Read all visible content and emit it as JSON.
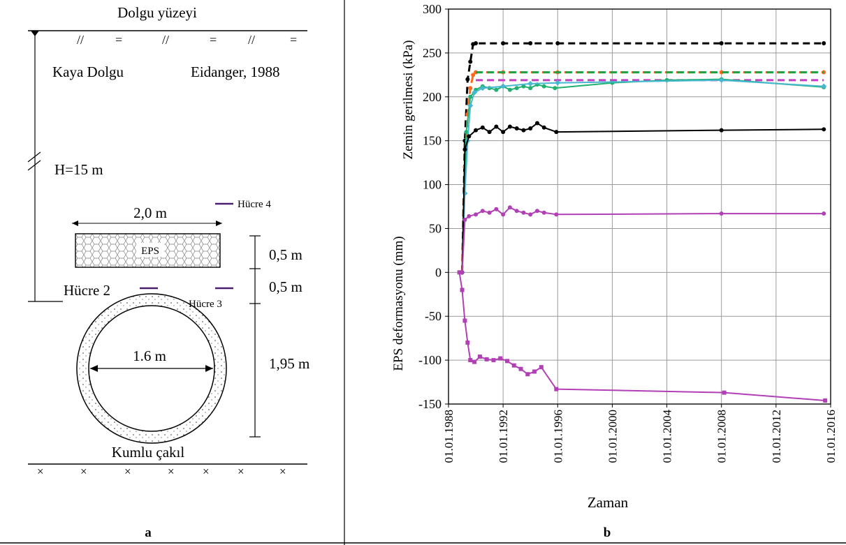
{
  "panel_a": {
    "surface_label": "Dolgu yüzeyi",
    "fill_label": "Kaya Dolgu",
    "reference": "Eidanger, 1988",
    "height_label": "H=15 m",
    "eps_width_label": "2,0 m",
    "eps_label": "EPS",
    "dim_top": "0,5 m",
    "dim_mid": "0,5 m",
    "dim_pipe": "1,95 m",
    "pipe_diameter_label": "1.6 m",
    "cell2": "Hücre 2",
    "cell3": "Hücre 3",
    "cell4": "Hücre 4",
    "base_label": "Kumlu çakıl",
    "panel_letter": "a",
    "colors": {
      "cell_marker": "#4b1f6e"
    }
  },
  "panel_b": {
    "panel_letter": "b",
    "xlabel": "Zaman",
    "ylabel_upper": "Zemin gerilmesi (kPa)",
    "ylabel_lower": "EPS deformasyonu (mm)"
  },
  "chart_data": {
    "type": "line",
    "title": "",
    "xlabel": "Zaman",
    "ylabel": "Zemin gerilmesi (kPa) / EPS deformasyonu (mm)",
    "xlim": [
      1988,
      2016
    ],
    "ylim": [
      -150,
      300
    ],
    "x_ticks": [
      "01.01.1988",
      "01.01.1992",
      "01.01.1996",
      "01.01.2000",
      "01.01.2004",
      "01.01.2008",
      "01.01.2012",
      "01.01.2016"
    ],
    "y_ticks": [
      "-150",
      "-100",
      "-50",
      "0",
      "50",
      "100",
      "150",
      "200",
      "250",
      "300"
    ],
    "grid": true,
    "legend": "none",
    "series": [
      {
        "color": "#000000",
        "dash": true,
        "marker": "circle",
        "x": [
          1989.0,
          1989.2,
          1989.4,
          1989.6,
          1989.8,
          1990.0,
          1992,
          1994,
          1996,
          2008,
          2015.5
        ],
        "y": [
          0,
          150,
          220,
          240,
          260,
          261,
          261,
          261,
          261,
          261,
          261
        ]
      },
      {
        "color": "#ff6a1a",
        "dash": true,
        "marker": "circle",
        "x": [
          1989.0,
          1989.2,
          1989.4,
          1989.6,
          1989.8,
          1990.0,
          1992,
          1996,
          2008,
          2015.5
        ],
        "y": [
          0,
          120,
          180,
          210,
          225,
          228,
          228,
          228,
          228,
          228
        ]
      },
      {
        "color": "#1aa34a",
        "dash": true,
        "marker": "none",
        "x": [
          1990.0,
          1996,
          2008,
          2015.5
        ],
        "y": [
          228,
          228,
          228,
          228
        ]
      },
      {
        "color": "#c23fc2",
        "dash": true,
        "marker": "none",
        "x": [
          1990.0,
          1996,
          2008,
          2015.5
        ],
        "y": [
          219,
          219,
          219,
          219
        ]
      },
      {
        "color": "#20b070",
        "dash": false,
        "marker": "circle",
        "x": [
          1989.0,
          1989.3,
          1989.6,
          1990.0,
          1990.5,
          1991,
          1991.5,
          1992,
          1992.5,
          1993,
          1993.5,
          1994,
          1994.5,
          1995,
          1995.8,
          2000,
          2004,
          2008,
          2015.5
        ],
        "y": [
          0,
          160,
          200,
          208,
          212,
          210,
          208,
          212,
          208,
          210,
          212,
          210,
          214,
          212,
          210,
          216,
          219,
          220,
          211
        ]
      },
      {
        "color": "#46b8d0",
        "dash": false,
        "marker": "diamond",
        "x": [
          1989.0,
          1989.2,
          1989.4,
          1989.6,
          1989.9,
          1990.5,
          1992,
          1994,
          1996,
          2008,
          2015.5
        ],
        "y": [
          0,
          90,
          150,
          190,
          205,
          210,
          212,
          215,
          216,
          219,
          212
        ]
      },
      {
        "color": "#000000",
        "dash": false,
        "marker": "circle",
        "x": [
          1989.0,
          1989.2,
          1989.5,
          1990.0,
          1990.5,
          1991,
          1991.5,
          1992,
          1992.5,
          1993,
          1993.5,
          1994,
          1994.5,
          1995,
          1995.9,
          2008,
          2015.5
        ],
        "y": [
          0,
          140,
          155,
          162,
          165,
          160,
          166,
          160,
          166,
          164,
          162,
          164,
          170,
          165,
          160,
          162,
          163
        ]
      },
      {
        "color": "#b13fb5",
        "dash": false,
        "marker": "circle",
        "x": [
          1989.0,
          1989.2,
          1989.5,
          1990.0,
          1990.5,
          1991,
          1991.5,
          1992,
          1992.5,
          1993,
          1993.5,
          1994,
          1994.5,
          1995,
          1995.9,
          2008,
          2015.5
        ],
        "y": [
          0,
          60,
          64,
          66,
          70,
          68,
          72,
          66,
          74,
          70,
          68,
          66,
          70,
          68,
          66,
          67,
          67
        ]
      },
      {
        "color": "#b13fb5",
        "dash": false,
        "marker": "square",
        "x": [
          1988.8,
          1989.0,
          1989.2,
          1989.4,
          1989.6,
          1989.9,
          1990.3,
          1990.8,
          1991.3,
          1991.8,
          1992.3,
          1992.8,
          1993.3,
          1993.8,
          1994.3,
          1994.8,
          1995.9,
          2008.2,
          2015.6
        ],
        "y": [
          0,
          -20,
          -55,
          -80,
          -100,
          -102,
          -96,
          -99,
          -100,
          -98,
          -101,
          -106,
          -110,
          -116,
          -113,
          -108,
          -133,
          -137,
          -146
        ]
      }
    ]
  }
}
